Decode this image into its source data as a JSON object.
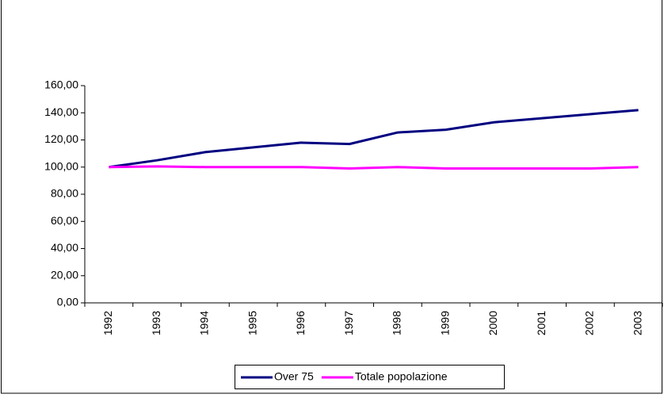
{
  "chart_data": {
    "type": "line",
    "categories": [
      "1992",
      "1993",
      "1994",
      "1995",
      "1996",
      "1997",
      "1998",
      "1999",
      "2000",
      "2001",
      "2002",
      "2003"
    ],
    "series": [
      {
        "name": "Over 75",
        "color": "#000080",
        "values": [
          100,
          105,
          111,
          114.5,
          118,
          117,
          125.5,
          127.5,
          133,
          136,
          139,
          142
        ]
      },
      {
        "name": "Totale popolazione",
        "color": "#ff00ff",
        "values": [
          100,
          100.5,
          100,
          100,
          100,
          99,
          100,
          99,
          99,
          99,
          99,
          100
        ]
      }
    ],
    "ylim": [
      0,
      160
    ],
    "yticks": [
      {
        "value": 0,
        "label": "0,00"
      },
      {
        "value": 20,
        "label": "20,00"
      },
      {
        "value": 40,
        "label": "40,00"
      },
      {
        "value": 60,
        "label": "60,00"
      },
      {
        "value": 80,
        "label": "80,00"
      },
      {
        "value": 100,
        "label": "100,00"
      },
      {
        "value": 120,
        "label": "120,00"
      },
      {
        "value": 140,
        "label": "140,00"
      },
      {
        "value": 160,
        "label": "160,00"
      }
    ],
    "grid": false,
    "legend": "bottom"
  }
}
